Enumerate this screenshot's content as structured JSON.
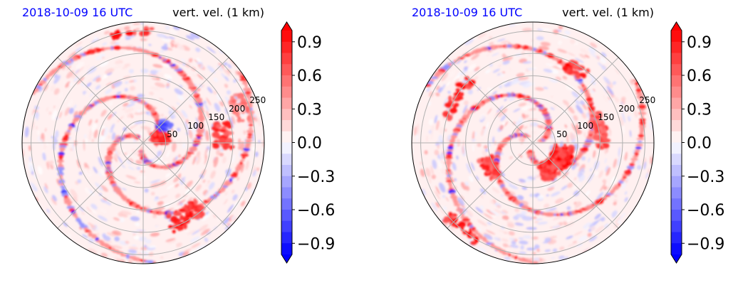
{
  "chart_data": [
    {
      "type": "heatmap",
      "projection": "polar",
      "title_left": "2018-10-09 16 UTC",
      "title_right": "vert. vel. (1 km)",
      "radial_ticks": [
        50,
        100,
        150,
        200,
        250
      ],
      "rmax": 270,
      "grid": true,
      "colormap": "bwr",
      "vmin": -1.0,
      "vmax": 1.0,
      "colorbar_ticks": [
        "0.9",
        "0.6",
        "0.3",
        "0.0",
        "−0.3",
        "−0.6",
        "−0.9"
      ],
      "colorbar_values": [
        0.9,
        0.6,
        0.3,
        0.0,
        -0.3,
        -0.6,
        -0.9
      ],
      "features": [
        {
          "r": 40,
          "theta": 20,
          "value": 1.0,
          "extent_r": 30,
          "extent_theta": 40
        },
        {
          "r": 60,
          "theta": 40,
          "value": -0.8,
          "extent_r": 25,
          "extent_theta": 20
        },
        {
          "r": 250,
          "theta": 95,
          "value": 1.0,
          "extent_r": 12,
          "extent_theta": 25
        },
        {
          "r": 190,
          "theta": 300,
          "value": 1.0,
          "extent_r": 40,
          "extent_theta": 25
        },
        {
          "r": 180,
          "theta": 5,
          "value": 0.9,
          "extent_r": 40,
          "extent_theta": 18
        },
        {
          "r": 230,
          "theta": 20,
          "value": 0.6,
          "extent_r": 30,
          "extent_theta": 15
        }
      ]
    },
    {
      "type": "heatmap",
      "projection": "polar",
      "title_left": "2018-10-09 16 UTC",
      "title_right": "vert. vel. (1 km)",
      "radial_ticks": [
        50,
        100,
        150,
        200,
        250
      ],
      "rmax": 270,
      "grid": true,
      "colormap": "bwr",
      "vmin": -1.0,
      "vmax": 1.0,
      "colorbar_ticks": [
        "0.9",
        "0.6",
        "0.3",
        "0.0",
        "−0.3",
        "−0.6",
        "−0.9"
      ],
      "colorbar_values": [
        0.9,
        0.6,
        0.3,
        0.0,
        -0.3,
        -0.6,
        -0.9
      ],
      "features": [
        {
          "r": 70,
          "theta": 320,
          "value": 1.0,
          "extent_r": 40,
          "extent_theta": 70
        },
        {
          "r": 200,
          "theta": 150,
          "value": 1.0,
          "extent_r": 20,
          "extent_theta": 30
        },
        {
          "r": 190,
          "theta": 60,
          "value": 1.0,
          "extent_r": 25,
          "extent_theta": 15
        },
        {
          "r": 150,
          "theta": 10,
          "value": 0.8,
          "extent_r": 30,
          "extent_theta": 30
        },
        {
          "r": 250,
          "theta": 230,
          "value": 1.0,
          "extent_r": 20,
          "extent_theta": 20
        },
        {
          "r": 110,
          "theta": 210,
          "value": 0.9,
          "extent_r": 30,
          "extent_theta": 25
        }
      ]
    }
  ]
}
